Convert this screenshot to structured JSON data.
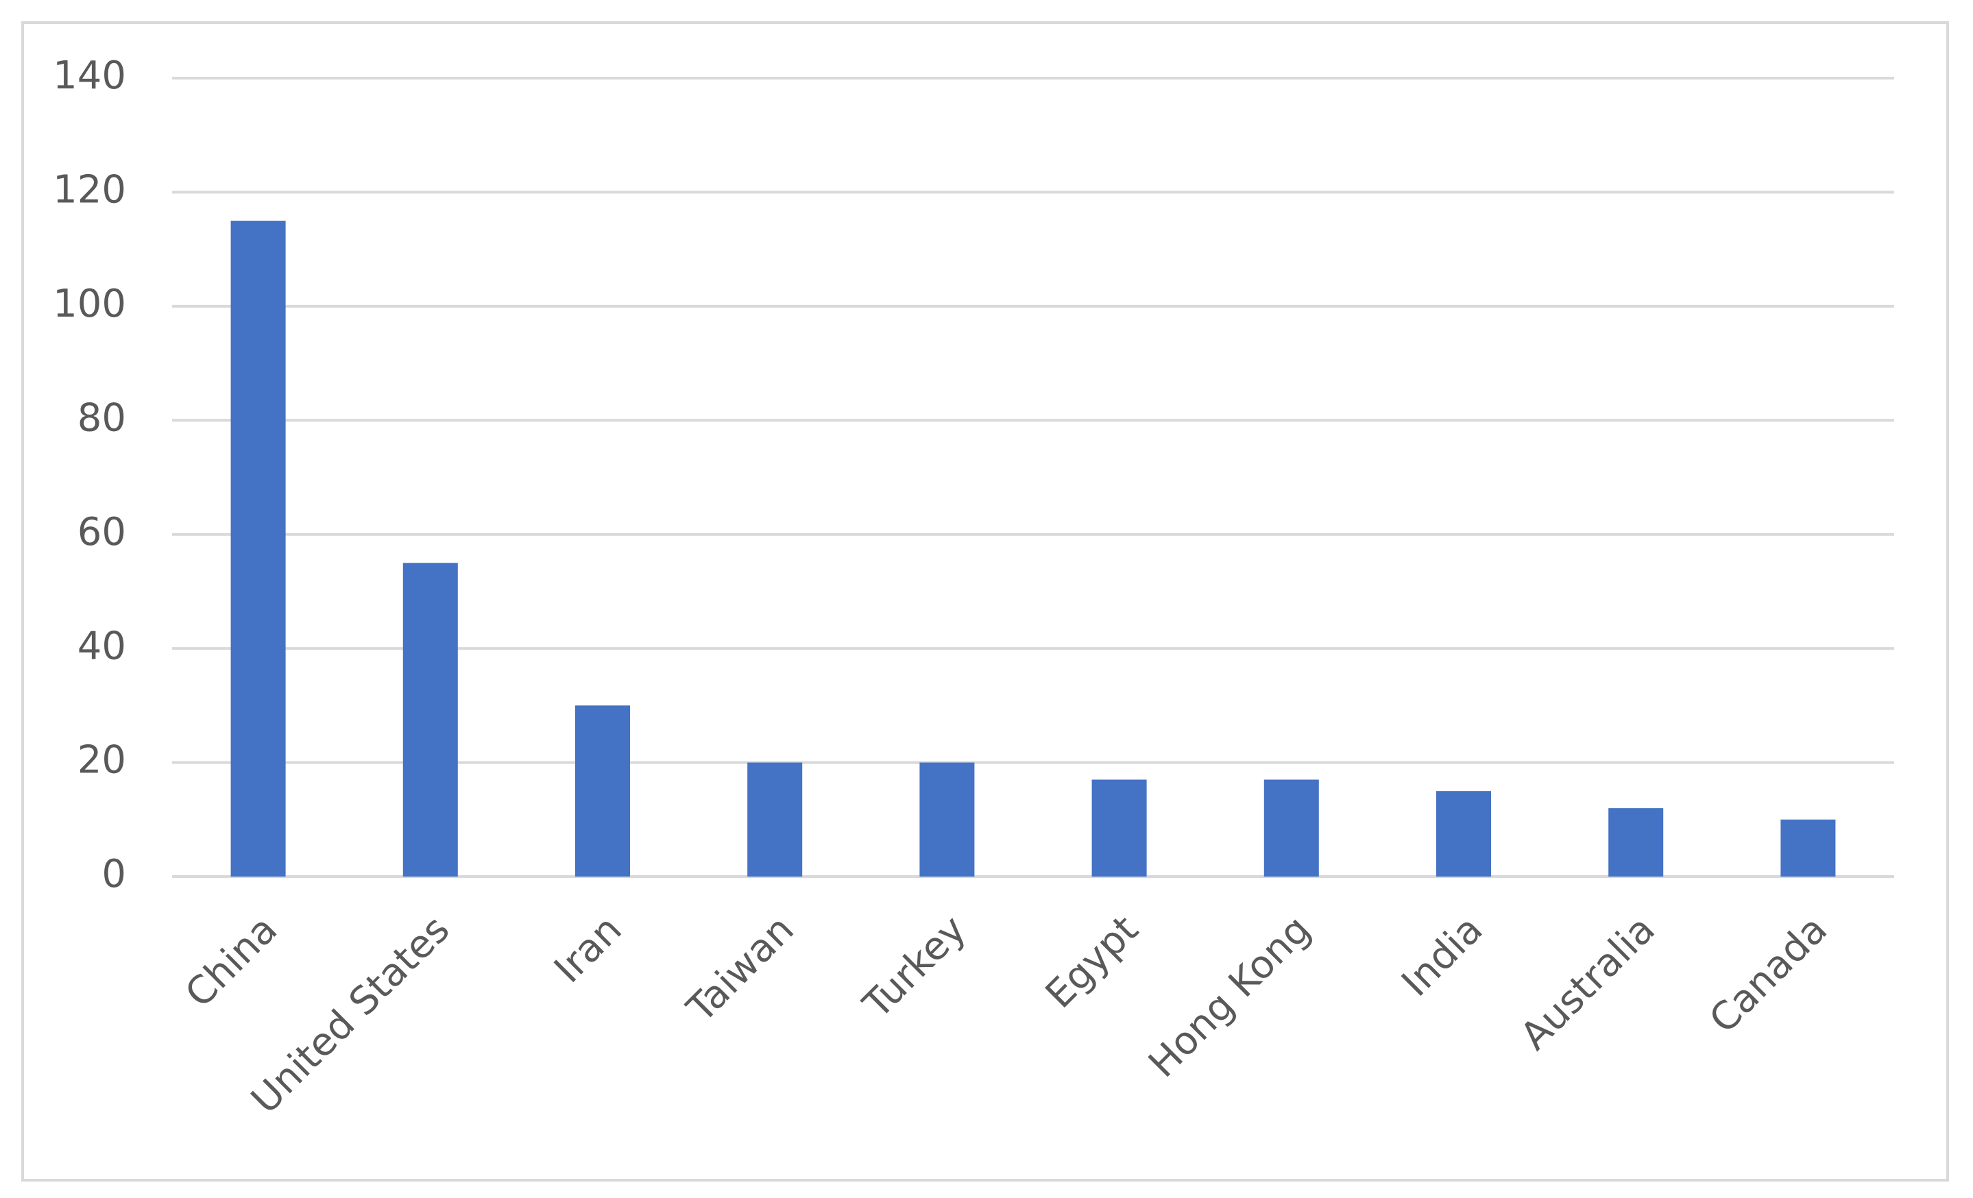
{
  "chart_data": {
    "type": "bar",
    "categories": [
      "China",
      "United States",
      "Iran",
      "Taiwan",
      "Turkey",
      "Egypt",
      "Hong Kong",
      "India",
      "Australia",
      "Canada"
    ],
    "values": [
      115,
      55,
      30,
      20,
      20,
      17,
      17,
      15,
      12,
      10
    ],
    "color": "#4472c4",
    "ylim": [
      0,
      140
    ],
    "yticks": [
      0,
      20,
      40,
      60,
      80,
      100,
      120,
      140
    ],
    "grid": true
  }
}
